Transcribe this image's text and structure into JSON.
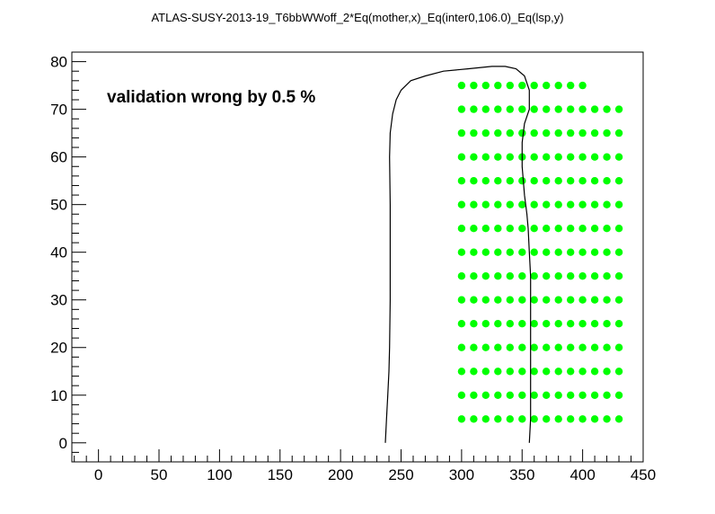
{
  "chart_data": {
    "type": "scatter",
    "title": "ATLAS-SUSY-2013-19_T6bbWWoff_2*Eq(mother,x)_Eq(inter0,106.0)_Eq(lsp,y)",
    "annotation": "validation wrong by 0.5 %",
    "xlabel": "",
    "ylabel": "",
    "xlim": [
      -22,
      450
    ],
    "ylim": [
      -4,
      82
    ],
    "x_ticks": [
      0,
      50,
      100,
      150,
      200,
      250,
      300,
      350,
      400,
      450
    ],
    "y_ticks": [
      0,
      10,
      20,
      30,
      40,
      50,
      60,
      70,
      80
    ],
    "grid": false,
    "colors": {
      "points": "#00ff00",
      "curve": "#000000",
      "frame": "#000000"
    },
    "series": [
      {
        "type": "scatter",
        "rows": [
          {
            "y": 5,
            "x_start": 300,
            "x_end": 430,
            "x_step": 10
          },
          {
            "y": 10,
            "x_start": 300,
            "x_end": 430,
            "x_step": 10
          },
          {
            "y": 15,
            "x_start": 300,
            "x_end": 430,
            "x_step": 10
          },
          {
            "y": 20,
            "x_start": 300,
            "x_end": 430,
            "x_step": 10
          },
          {
            "y": 25,
            "x_start": 300,
            "x_end": 430,
            "x_step": 10
          },
          {
            "y": 30,
            "x_start": 300,
            "x_end": 430,
            "x_step": 10
          },
          {
            "y": 35,
            "x_start": 300,
            "x_end": 430,
            "x_step": 10
          },
          {
            "y": 40,
            "x_start": 300,
            "x_end": 430,
            "x_step": 10
          },
          {
            "y": 45,
            "x_start": 300,
            "x_end": 430,
            "x_step": 10
          },
          {
            "y": 50,
            "x_start": 300,
            "x_end": 430,
            "x_step": 10
          },
          {
            "y": 55,
            "x_start": 300,
            "x_end": 430,
            "x_step": 10
          },
          {
            "y": 60,
            "x_start": 300,
            "x_end": 430,
            "x_step": 10
          },
          {
            "y": 65,
            "x_start": 300,
            "x_end": 430,
            "x_step": 10
          },
          {
            "y": 70,
            "x_start": 300,
            "x_end": 430,
            "x_step": 10
          },
          {
            "y": 75,
            "x_start": 300,
            "x_end": 400,
            "x_step": 10
          }
        ]
      },
      {
        "type": "line",
        "points": [
          [
            237,
            0
          ],
          [
            238,
            5
          ],
          [
            239,
            10
          ],
          [
            240,
            15
          ],
          [
            240.5,
            20
          ],
          [
            241,
            30
          ],
          [
            241,
            40
          ],
          [
            241,
            50
          ],
          [
            240.5,
            60
          ],
          [
            241,
            65
          ],
          [
            243,
            69
          ],
          [
            246,
            72
          ],
          [
            250,
            74
          ],
          [
            258,
            76
          ],
          [
            270,
            77
          ],
          [
            285,
            78
          ],
          [
            305,
            78.5
          ],
          [
            325,
            79
          ],
          [
            336,
            79
          ],
          [
            345,
            78.5
          ],
          [
            352,
            77
          ],
          [
            356,
            74
          ],
          [
            356,
            70
          ],
          [
            352,
            67
          ],
          [
            350,
            63
          ],
          [
            350,
            58
          ],
          [
            351,
            55
          ],
          [
            352,
            52
          ],
          [
            354,
            48
          ],
          [
            355,
            45
          ],
          [
            356,
            40
          ],
          [
            357,
            35
          ],
          [
            357,
            30
          ],
          [
            357,
            25
          ],
          [
            357,
            20
          ],
          [
            357,
            15
          ],
          [
            357,
            10
          ],
          [
            357,
            5
          ],
          [
            356,
            0
          ]
        ]
      }
    ]
  }
}
